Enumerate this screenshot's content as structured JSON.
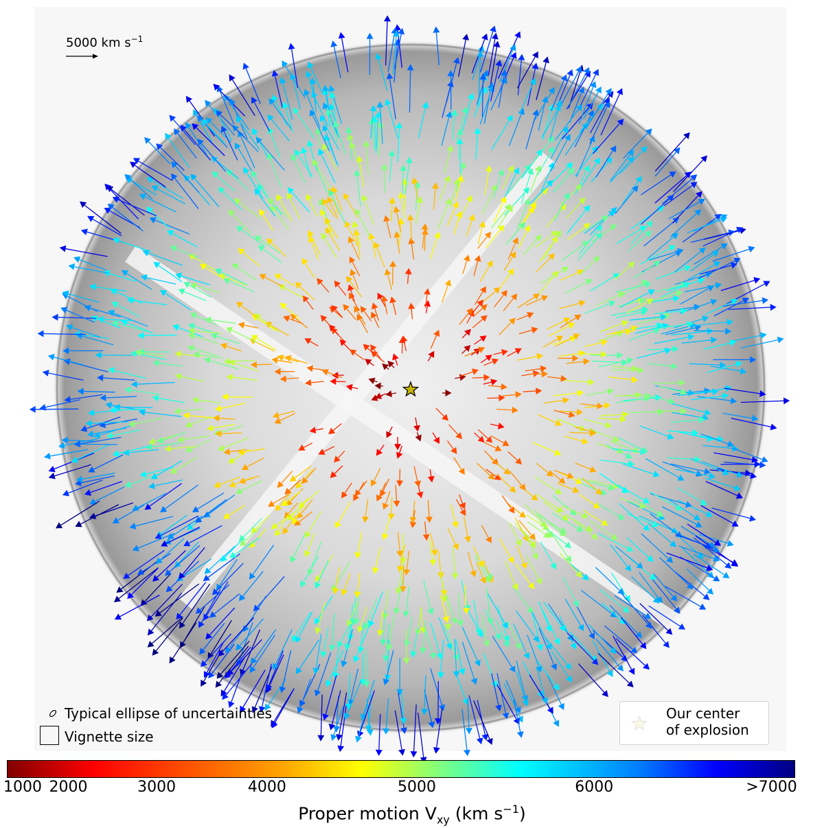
{
  "chart_data": {
    "type": "scatter",
    "description_kind": "proper-motion vector field over supernova remnant image",
    "xlabel": "",
    "ylabel": "",
    "colorbar": {
      "label_prefix": "Proper motion V",
      "label_sub": "xy",
      "label_suffix": " (km s",
      "label_sup": "−1",
      "label_close": ")",
      "min": 1000,
      "max": 7000,
      "colormap": "jet_r",
      "ticks": [
        {
          "value": 1000,
          "label": "1000"
        },
        {
          "value": 2000,
          "label": "2000"
        },
        {
          "value": 3000,
          "label": "3000"
        },
        {
          "value": 4000,
          "label": "4000"
        },
        {
          "value": 5000,
          "label": "5000"
        },
        {
          "value": 6000,
          "label": "6000"
        },
        {
          "value": 7000,
          "label": ">7000"
        }
      ]
    },
    "scale_arrow": {
      "value": 5000,
      "label": "5000 km s",
      "sup": "−1"
    },
    "legend": {
      "ellipse_label": "Typical ellipse of uncertainties",
      "vignette_label": "Vignette size",
      "center_label_line1": "Our center",
      "center_label_line2": "of explosion",
      "star_color": "#c8b400"
    },
    "center_of_explosion": {
      "x": 0,
      "y": 0
    },
    "remnant_radius_kms_equiv": 7000,
    "vector_count_approx": 1200
  }
}
